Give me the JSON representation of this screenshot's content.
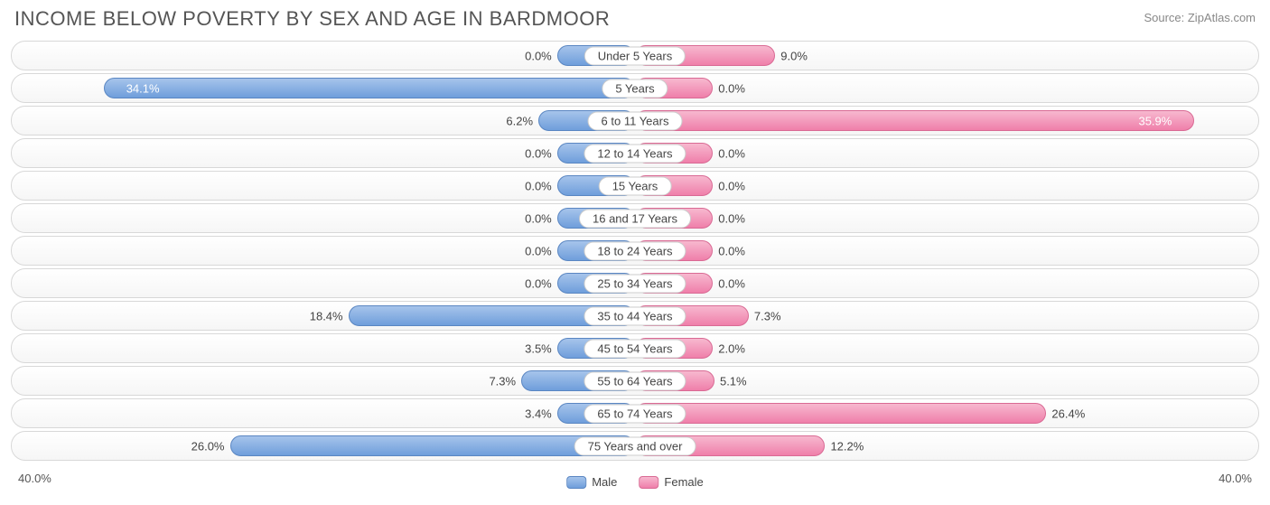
{
  "title": "INCOME BELOW POVERTY BY SEX AND AGE IN BARDMOOR",
  "source": "Source: ZipAtlas.com",
  "chart": {
    "type": "diverging-bar",
    "axis_max": 40.0,
    "axis_label_left": "40.0%",
    "axis_label_right": "40.0%",
    "min_bar_pct": 5.0,
    "male_color_top": "#a6c4eb",
    "male_color_bottom": "#6f9edb",
    "male_border": "#5a86c2",
    "female_color_top": "#f7b8cf",
    "female_color_bottom": "#ef7faa",
    "female_border": "#d96a94",
    "row_bg_top": "#ffffff",
    "row_bg_bottom": "#f6f6f6",
    "row_border": "#d8d8d8",
    "label_bg": "#ffffff",
    "label_border": "#cccccc",
    "text_color": "#444444",
    "inside_text_color": "#ffffff",
    "title_color": "#555555",
    "source_color": "#888888",
    "title_fontsize": 22,
    "label_fontsize": 13,
    "categories": [
      {
        "label": "Under 5 Years",
        "male": 0.0,
        "female": 9.0
      },
      {
        "label": "5 Years",
        "male": 34.1,
        "female": 0.0
      },
      {
        "label": "6 to 11 Years",
        "male": 6.2,
        "female": 35.9
      },
      {
        "label": "12 to 14 Years",
        "male": 0.0,
        "female": 0.0
      },
      {
        "label": "15 Years",
        "male": 0.0,
        "female": 0.0
      },
      {
        "label": "16 and 17 Years",
        "male": 0.0,
        "female": 0.0
      },
      {
        "label": "18 to 24 Years",
        "male": 0.0,
        "female": 0.0
      },
      {
        "label": "25 to 34 Years",
        "male": 0.0,
        "female": 0.0
      },
      {
        "label": "35 to 44 Years",
        "male": 18.4,
        "female": 7.3
      },
      {
        "label": "45 to 54 Years",
        "male": 3.5,
        "female": 2.0
      },
      {
        "label": "55 to 64 Years",
        "male": 7.3,
        "female": 5.1
      },
      {
        "label": "65 to 74 Years",
        "male": 3.4,
        "female": 26.4
      },
      {
        "label": "75 Years and over",
        "male": 26.0,
        "female": 12.2
      }
    ]
  },
  "legend": {
    "male": "Male",
    "female": "Female"
  }
}
